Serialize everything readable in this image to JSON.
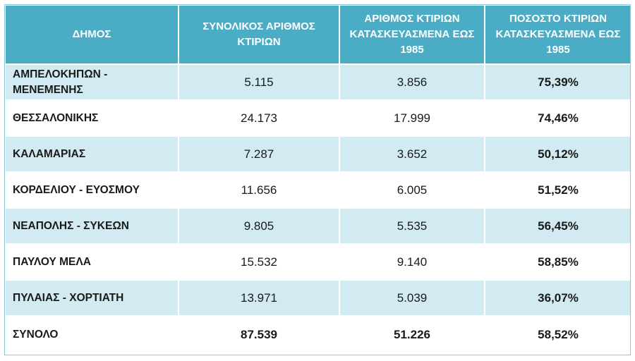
{
  "table": {
    "headers": [
      "ΔΗΜΟΣ",
      "ΣΥΝΟΛΙΚΟΣ ΑΡΙΘΜΟΣ ΚΤΙΡΙΩΝ",
      "ΑΡΙΘΜΟΣ ΚΤΙΡΙΩΝ ΚΑΤΑΣΚΕΥΑΣΜΕΝΑ ΕΩΣ 1985",
      "ΠΟΣΟΣΤΟ ΚΤΙΡΙΩΝ ΚΑΤΑΣΚΕΥΑΣΜΕΝΑ ΕΩΣ 1985"
    ],
    "rows": [
      [
        "ΑΜΠΕΛΟΚΗΠΩΝ - ΜΕΝΕΜΕΝΗΣ",
        "5.115",
        "3.856",
        "75,39%"
      ],
      [
        "ΘΕΣΣΑΛΟΝΙΚΗΣ",
        "24.173",
        "17.999",
        "74,46%"
      ],
      [
        "ΚΑΛΑΜΑΡΙΑΣ",
        "7.287",
        "3.652",
        "50,12%"
      ],
      [
        "ΚΟΡΔΕΛΙΟΥ - ΕΥΟΣΜΟΥ",
        "11.656",
        "6.005",
        "51,52%"
      ],
      [
        "ΝΕΑΠΟΛΗΣ - ΣΥΚΕΩΝ",
        "9.805",
        "5.535",
        "56,45%"
      ],
      [
        "ΠΑΥΛΟΥ ΜΕΛΑ",
        "15.532",
        "9.140",
        "58,85%"
      ],
      [
        "ΠΥΛΑΙΑΣ - ΧΟΡΤΙΑΤΗ",
        "13.971",
        "5.039",
        "36,07%"
      ],
      [
        "ΣΥΝΟΛΟ",
        "87.539",
        "51.226",
        "58,52%"
      ]
    ]
  },
  "colors": {
    "header_bg": "#4bacc6",
    "band_bg": "#d2eaf2",
    "text": "#1a1a1a"
  }
}
